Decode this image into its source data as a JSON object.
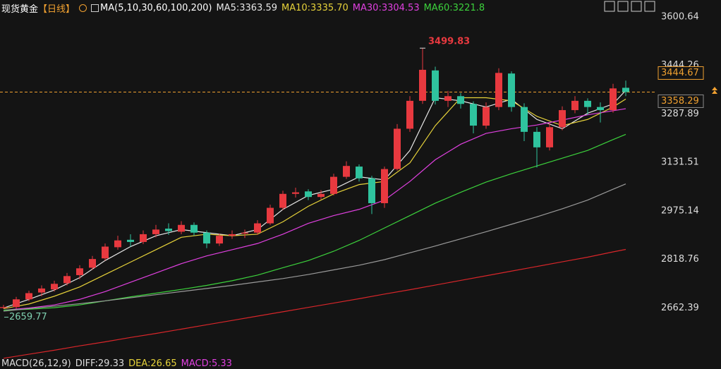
{
  "header": {
    "title": "现货黄金",
    "period": "【日线】",
    "indicator": "MA(5,10,30,60,100,200)"
  },
  "chart_data": {
    "type": "candlestick",
    "x": [
      0,
      2,
      4,
      6,
      8,
      10,
      12,
      14,
      16,
      18,
      20,
      22,
      24,
      26,
      28,
      30,
      32,
      34,
      36,
      38,
      40,
      42,
      44,
      46,
      48,
      49
    ],
    "candles": [
      [
        2662,
        2672,
        2659.77,
        2665
      ],
      [
        2665,
        2698,
        2660,
        2690
      ],
      [
        2690,
        2718,
        2684,
        2710
      ],
      [
        2712,
        2735,
        2700,
        2725
      ],
      [
        2722,
        2750,
        2715,
        2740
      ],
      [
        2742,
        2775,
        2735,
        2765
      ],
      [
        2768,
        2800,
        2755,
        2790
      ],
      [
        2792,
        2830,
        2785,
        2820
      ],
      [
        2822,
        2870,
        2815,
        2860
      ],
      [
        2858,
        2895,
        2850,
        2880
      ],
      [
        2882,
        2900,
        2860,
        2875
      ],
      [
        2875,
        2912,
        2868,
        2900
      ],
      [
        2900,
        2930,
        2890,
        2915
      ],
      [
        2918,
        2935,
        2898,
        2910
      ],
      [
        2908,
        2942,
        2900,
        2930
      ],
      [
        2930,
        2938,
        2895,
        2905
      ],
      [
        2905,
        2912,
        2855,
        2870
      ],
      [
        2870,
        2902,
        2862,
        2895
      ],
      [
        2895,
        2912,
        2885,
        2900
      ],
      [
        2902,
        2915,
        2888,
        2905
      ],
      [
        2905,
        2945,
        2898,
        2935
      ],
      [
        2935,
        2995,
        2930,
        2985
      ],
      [
        2985,
        3040,
        2978,
        3030
      ],
      [
        3030,
        3050,
        3018,
        3035
      ],
      [
        3038,
        3045,
        3010,
        3020
      ],
      [
        3020,
        3042,
        3012,
        3030
      ],
      [
        3030,
        3095,
        3025,
        3085
      ],
      [
        3085,
        3135,
        3078,
        3120
      ],
      [
        3118,
        3125,
        3070,
        3080
      ],
      [
        3080,
        3088,
        2965,
        3000
      ],
      [
        3000,
        3118,
        2985,
        3110
      ],
      [
        3110,
        3255,
        3105,
        3240
      ],
      [
        3240,
        3345,
        3230,
        3330
      ],
      [
        3330,
        3499.83,
        3320,
        3430
      ],
      [
        3428,
        3440,
        3318,
        3330
      ],
      [
        3330,
        3362,
        3310,
        3345
      ],
      [
        3345,
        3355,
        3305,
        3320
      ],
      [
        3320,
        3328,
        3225,
        3250
      ],
      [
        3250,
        3325,
        3240,
        3310
      ],
      [
        3310,
        3435,
        3300,
        3420
      ],
      [
        3418,
        3425,
        3295,
        3310
      ],
      [
        3310,
        3322,
        3200,
        3230
      ],
      [
        3230,
        3245,
        3115,
        3180
      ],
      [
        3180,
        3258,
        3170,
        3245
      ],
      [
        3245,
        3312,
        3235,
        3300
      ],
      [
        3300,
        3345,
        3290,
        3330
      ],
      [
        3330,
        3338,
        3285,
        3310
      ],
      [
        3310,
        3325,
        3260,
        3300
      ],
      [
        3300,
        3385,
        3292,
        3370
      ],
      [
        3372,
        3395,
        3345,
        3358.29
      ]
    ],
    "up_color": "#e8393f",
    "down_color": "#2fc39e",
    "series": [
      {
        "name": "MA5:3363.59",
        "color": "#e6e6e6",
        "values": [
          2662,
          2690,
          2720,
          2760,
          2815,
          2860,
          2895,
          2915,
          2905,
          2895,
          2915,
          2980,
          3025,
          3045,
          3085,
          3075,
          3170,
          3340,
          3330,
          3310,
          3335,
          3270,
          3240,
          3290,
          3320,
          3363.59
        ]
      },
      {
        "name": "MA10:3335.70",
        "color": "#e6d23a",
        "values": [
          2660,
          2675,
          2700,
          2730,
          2770,
          2810,
          2850,
          2890,
          2900,
          2895,
          2900,
          2940,
          2990,
          3030,
          3060,
          3070,
          3130,
          3250,
          3340,
          3340,
          3330,
          3280,
          3250,
          3270,
          3310,
          3335.7
        ]
      },
      {
        "name": "MA30:3304.53",
        "color": "#e040e0",
        "values": [
          2655,
          2662,
          2672,
          2690,
          2715,
          2745,
          2775,
          2805,
          2830,
          2850,
          2870,
          2900,
          2935,
          2960,
          2980,
          3010,
          3070,
          3140,
          3190,
          3225,
          3240,
          3252,
          3268,
          3285,
          3298,
          3304.53
        ]
      },
      {
        "name": "MA60:3221.8",
        "color": "#3cd23c",
        "values": [
          2655,
          2658,
          2663,
          2672,
          2685,
          2698,
          2710,
          2722,
          2735,
          2750,
          2768,
          2792,
          2815,
          2845,
          2880,
          2920,
          2960,
          3000,
          3035,
          3068,
          3095,
          3120,
          3145,
          3170,
          3205,
          3221.8
        ]
      },
      {
        "color": "#9a9a9a",
        "values": [
          2652,
          2660,
          2668,
          2676,
          2685,
          2695,
          2705,
          2715,
          2725,
          2735,
          2746,
          2757,
          2770,
          2785,
          2800,
          2818,
          2840,
          2862,
          2885,
          2908,
          2932,
          2956,
          2982,
          3010,
          3045,
          3062
        ]
      },
      {
        "color": "#d8262a",
        "values": [
          2500,
          2513,
          2526,
          2540,
          2553,
          2567,
          2580,
          2594,
          2608,
          2622,
          2636,
          2650,
          2664,
          2678,
          2692,
          2707,
          2721,
          2736,
          2751,
          2766,
          2781,
          2796,
          2811,
          2826,
          2843,
          2851
        ]
      }
    ],
    "ylim": [
      2495,
      3655
    ],
    "yticks": [
      3600.64,
      3444.26,
      3287.89,
      3131.51,
      2975.14,
      2818.76,
      2662.39
    ],
    "grid": false,
    "markers": [
      {
        "value": 3444.67,
        "color": "#f0a030"
      },
      {
        "value": 3358.29,
        "color": "#f0a030",
        "line": true
      }
    ]
  },
  "footer": [
    {
      "text": "MACD(26,12,9)",
      "color": "#dddddd"
    },
    {
      "text": "DIFF:29.33",
      "color": "#dddddd"
    },
    {
      "text": "DEA:26.65",
      "color": "#e6d23a"
    },
    {
      "text": "MACD:5.33",
      "color": "#e040e0"
    }
  ]
}
